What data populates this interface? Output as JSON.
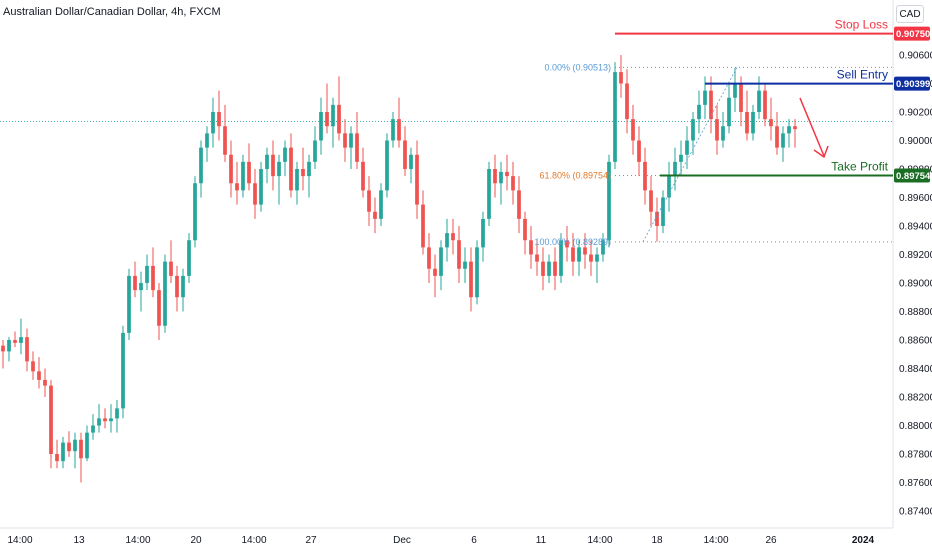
{
  "chart_data": {
    "type": "candlestick",
    "title": "Australian Dollar/Canadian Dollar, 4h, FXCM",
    "currency": "CAD",
    "y_ticks": [
      0.874,
      0.876,
      0.878,
      0.88,
      0.882,
      0.884,
      0.886,
      0.888,
      0.89,
      0.892,
      0.894,
      0.896,
      0.898,
      0.9,
      0.902,
      0.904,
      0.906
    ],
    "y_tick_labels": [
      "0.87400",
      "0.87600",
      "0.87800",
      "0.88000",
      "0.88200",
      "0.88400",
      "0.88600",
      "0.88800",
      "0.89000",
      "0.89200",
      "0.89400",
      "0.89600",
      "0.89800",
      "0.90000",
      "0.90200",
      "0.90400",
      "0.90600"
    ],
    "ylim": [
      0.8735,
      0.9085
    ],
    "x_ticks": [
      "14:00",
      "13",
      "14:00",
      "20",
      "14:00",
      "27",
      "Dec",
      "6",
      "11",
      "14:00",
      "18",
      "14:00",
      "26",
      "2024"
    ],
    "current_price_line": 0.90133,
    "levels": {
      "stop_loss": {
        "label": "Stop Loss",
        "value": 0.9075,
        "badge": "0.90750",
        "color": "#f23645"
      },
      "sell_entry": {
        "label": "Sell Entry",
        "value": 0.90399,
        "badge": "0.90399",
        "color": "#0d2fa0"
      },
      "take_profit": {
        "label": "Take Profit",
        "value": 0.89754,
        "badge": "0.89754",
        "color": "#1b6d24"
      }
    },
    "fibonacci": [
      {
        "label": "0.00% (0.90513)",
        "value": 0.90513,
        "color": "#5b9bd5"
      },
      {
        "label": "61.80% (0.89754)",
        "value": 0.89754,
        "color": "#e07b2c"
      },
      {
        "label": "100.00% (0.89289)",
        "value": 0.89289,
        "color": "#5b9bd5"
      }
    ],
    "candles": [
      [
        0.8856,
        0.886,
        0.884,
        0.8852
      ],
      [
        0.8852,
        0.8862,
        0.8845,
        0.886
      ],
      [
        0.886,
        0.8866,
        0.8855,
        0.8858
      ],
      [
        0.8858,
        0.8875,
        0.885,
        0.8862
      ],
      [
        0.8862,
        0.8868,
        0.8838,
        0.8845
      ],
      [
        0.8845,
        0.8852,
        0.8832,
        0.8838
      ],
      [
        0.8838,
        0.8848,
        0.8826,
        0.8832
      ],
      [
        0.8832,
        0.884,
        0.882,
        0.8828
      ],
      [
        0.8828,
        0.8832,
        0.877,
        0.878
      ],
      [
        0.878,
        0.879,
        0.877,
        0.8775
      ],
      [
        0.8775,
        0.8792,
        0.877,
        0.8788
      ],
      [
        0.8788,
        0.8796,
        0.8778,
        0.8782
      ],
      [
        0.8782,
        0.8795,
        0.877,
        0.879
      ],
      [
        0.879,
        0.8795,
        0.876,
        0.8777
      ],
      [
        0.8777,
        0.88,
        0.8775,
        0.8795
      ],
      [
        0.8795,
        0.8808,
        0.879,
        0.88
      ],
      [
        0.88,
        0.8815,
        0.8795,
        0.8805
      ],
      [
        0.8805,
        0.8812,
        0.8798,
        0.8803
      ],
      [
        0.8803,
        0.8815,
        0.8795,
        0.8805
      ],
      [
        0.8805,
        0.8818,
        0.8795,
        0.8812
      ],
      [
        0.8812,
        0.887,
        0.8805,
        0.8865
      ],
      [
        0.8865,
        0.891,
        0.886,
        0.8905
      ],
      [
        0.8905,
        0.8915,
        0.889,
        0.8895
      ],
      [
        0.8895,
        0.8908,
        0.888,
        0.89
      ],
      [
        0.89,
        0.892,
        0.8895,
        0.8912
      ],
      [
        0.8912,
        0.8925,
        0.889,
        0.8895
      ],
      [
        0.8895,
        0.89,
        0.886,
        0.887
      ],
      [
        0.887,
        0.892,
        0.8865,
        0.8915
      ],
      [
        0.8915,
        0.893,
        0.89,
        0.8905
      ],
      [
        0.8905,
        0.8912,
        0.888,
        0.889
      ],
      [
        0.889,
        0.891,
        0.888,
        0.8905
      ],
      [
        0.8905,
        0.8935,
        0.89,
        0.893
      ],
      [
        0.893,
        0.8975,
        0.8925,
        0.897
      ],
      [
        0.897,
        0.9,
        0.896,
        0.8995
      ],
      [
        0.8995,
        0.901,
        0.8985,
        0.9005
      ],
      [
        0.9005,
        0.903,
        0.8995,
        0.902
      ],
      [
        0.902,
        0.9035,
        0.9,
        0.901
      ],
      [
        0.901,
        0.9025,
        0.8985,
        0.899
      ],
      [
        0.899,
        0.9,
        0.896,
        0.897
      ],
      [
        0.897,
        0.8985,
        0.8955,
        0.8965
      ],
      [
        0.8965,
        0.899,
        0.896,
        0.8985
      ],
      [
        0.8985,
        0.8998,
        0.8965,
        0.897
      ],
      [
        0.897,
        0.898,
        0.8945,
        0.8955
      ],
      [
        0.8955,
        0.8985,
        0.895,
        0.898
      ],
      [
        0.898,
        0.8995,
        0.897,
        0.899
      ],
      [
        0.899,
        0.9,
        0.8965,
        0.8975
      ],
      [
        0.8975,
        0.899,
        0.8955,
        0.8985
      ],
      [
        0.8985,
        0.9,
        0.8975,
        0.8995
      ],
      [
        0.8995,
        0.9005,
        0.896,
        0.8965
      ],
      [
        0.8965,
        0.8985,
        0.8955,
        0.898
      ],
      [
        0.898,
        0.8995,
        0.8965,
        0.8975
      ],
      [
        0.8975,
        0.899,
        0.896,
        0.8985
      ],
      [
        0.8985,
        0.901,
        0.898,
        0.9
      ],
      [
        0.9,
        0.903,
        0.899,
        0.902
      ],
      [
        0.902,
        0.904,
        0.9005,
        0.901
      ],
      [
        0.901,
        0.903,
        0.8995,
        0.9025
      ],
      [
        0.9025,
        0.9045,
        0.9,
        0.9005
      ],
      [
        0.9005,
        0.9015,
        0.8985,
        0.8995
      ],
      [
        0.8995,
        0.901,
        0.898,
        0.9005
      ],
      [
        0.9005,
        0.902,
        0.898,
        0.8985
      ],
      [
        0.8985,
        0.8995,
        0.896,
        0.8965
      ],
      [
        0.8965,
        0.8975,
        0.894,
        0.895
      ],
      [
        0.895,
        0.896,
        0.8935,
        0.8945
      ],
      [
        0.8945,
        0.897,
        0.894,
        0.8965
      ],
      [
        0.8965,
        0.9005,
        0.896,
        0.9
      ],
      [
        0.9,
        0.902,
        0.8995,
        0.9015
      ],
      [
        0.9015,
        0.903,
        0.8995,
        0.9
      ],
      [
        0.9,
        0.901,
        0.8975,
        0.898
      ],
      [
        0.898,
        0.8995,
        0.897,
        0.899
      ],
      [
        0.899,
        0.9,
        0.8945,
        0.8955
      ],
      [
        0.8955,
        0.8965,
        0.892,
        0.8925
      ],
      [
        0.8925,
        0.8935,
        0.89,
        0.891
      ],
      [
        0.891,
        0.892,
        0.889,
        0.8905
      ],
      [
        0.8905,
        0.893,
        0.8895,
        0.8925
      ],
      [
        0.8925,
        0.8945,
        0.8915,
        0.8935
      ],
      [
        0.8935,
        0.8945,
        0.892,
        0.893
      ],
      [
        0.893,
        0.894,
        0.89,
        0.891
      ],
      [
        0.891,
        0.8925,
        0.89,
        0.8915
      ],
      [
        0.8915,
        0.8925,
        0.888,
        0.889
      ],
      [
        0.889,
        0.893,
        0.8885,
        0.8925
      ],
      [
        0.8925,
        0.895,
        0.8915,
        0.8945
      ],
      [
        0.8945,
        0.8985,
        0.894,
        0.898
      ],
      [
        0.898,
        0.899,
        0.896,
        0.897
      ],
      [
        0.897,
        0.8985,
        0.8955,
        0.8978
      ],
      [
        0.8978,
        0.899,
        0.8965,
        0.8975
      ],
      [
        0.8975,
        0.8985,
        0.8955,
        0.8965
      ],
      [
        0.8965,
        0.8975,
        0.8935,
        0.8945
      ],
      [
        0.8945,
        0.895,
        0.892,
        0.893
      ],
      [
        0.893,
        0.894,
        0.891,
        0.892
      ],
      [
        0.892,
        0.893,
        0.8905,
        0.8915
      ],
      [
        0.8915,
        0.8925,
        0.8895,
        0.8905
      ],
      [
        0.8905,
        0.892,
        0.89,
        0.8915
      ],
      [
        0.8915,
        0.8925,
        0.8895,
        0.8905
      ],
      [
        0.8905,
        0.8935,
        0.89,
        0.893
      ],
      [
        0.893,
        0.894,
        0.8915,
        0.8925
      ],
      [
        0.8925,
        0.8935,
        0.8905,
        0.8915
      ],
      [
        0.8915,
        0.893,
        0.8905,
        0.8925
      ],
      [
        0.8925,
        0.8935,
        0.891,
        0.892
      ],
      [
        0.892,
        0.893,
        0.8905,
        0.8915
      ],
      [
        0.8915,
        0.8925,
        0.89,
        0.892
      ],
      [
        0.892,
        0.8935,
        0.8915,
        0.893
      ],
      [
        0.893,
        0.899,
        0.8925,
        0.8985
      ],
      [
        0.8985,
        0.9055,
        0.898,
        0.9048
      ],
      [
        0.9048,
        0.906,
        0.903,
        0.904
      ],
      [
        0.904,
        0.905,
        0.9005,
        0.9015
      ],
      [
        0.9015,
        0.9025,
        0.899,
        0.9
      ],
      [
        0.9,
        0.901,
        0.8975,
        0.8985
      ],
      [
        0.8985,
        0.8995,
        0.8955,
        0.8965
      ],
      [
        0.8965,
        0.8975,
        0.894,
        0.895
      ],
      [
        0.895,
        0.896,
        0.8929,
        0.894
      ],
      [
        0.894,
        0.8965,
        0.8935,
        0.896
      ],
      [
        0.896,
        0.8985,
        0.895,
        0.8975
      ],
      [
        0.8975,
        0.8995,
        0.8965,
        0.8985
      ],
      [
        0.8985,
        0.9,
        0.8975,
        0.899
      ],
      [
        0.899,
        0.901,
        0.898,
        0.9
      ],
      [
        0.9,
        0.902,
        0.899,
        0.9015
      ],
      [
        0.9015,
        0.9035,
        0.9005,
        0.9025
      ],
      [
        0.9025,
        0.9045,
        0.9015,
        0.9035
      ],
      [
        0.9035,
        0.9045,
        0.9005,
        0.9015
      ],
      [
        0.9015,
        0.9025,
        0.899,
        0.9
      ],
      [
        0.9,
        0.902,
        0.8995,
        0.901
      ],
      [
        0.901,
        0.904,
        0.9005,
        0.903
      ],
      [
        0.903,
        0.9051,
        0.902,
        0.904
      ],
      [
        0.904,
        0.9045,
        0.901,
        0.902
      ],
      [
        0.902,
        0.9035,
        0.9,
        0.9005
      ],
      [
        0.9005,
        0.9025,
        0.9,
        0.902
      ],
      [
        0.902,
        0.9045,
        0.9015,
        0.9035
      ],
      [
        0.9035,
        0.904,
        0.901,
        0.9015
      ],
      [
        0.9015,
        0.903,
        0.9,
        0.901
      ],
      [
        0.901,
        0.902,
        0.899,
        0.8995
      ],
      [
        0.8995,
        0.901,
        0.8985,
        0.9005
      ],
      [
        0.9005,
        0.9015,
        0.8995,
        0.901
      ],
      [
        0.901,
        0.9015,
        0.8995,
        0.9008
      ]
    ]
  }
}
